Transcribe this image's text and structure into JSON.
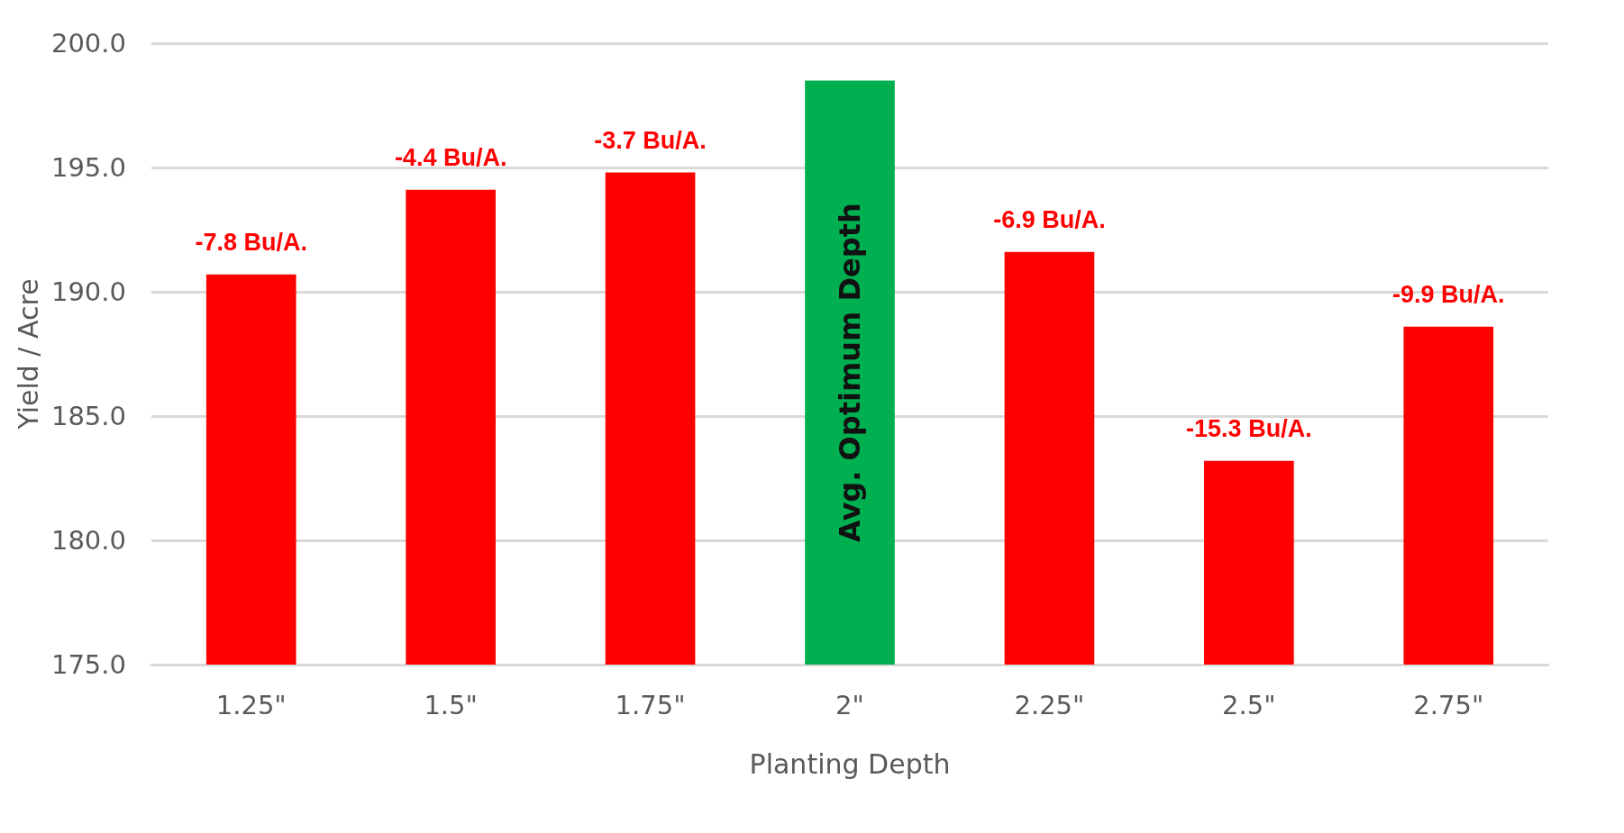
{
  "chart_data": {
    "type": "bar",
    "xlabel": "Planting Depth",
    "ylabel": "Yield / Acre",
    "categories": [
      "1.25\"",
      "1.5\"",
      "1.75\"",
      "2\"",
      "2.25\"",
      "2.5\"",
      "2.75\""
    ],
    "values": [
      190.7,
      194.1,
      194.8,
      198.5,
      191.6,
      183.2,
      188.6
    ],
    "colors": [
      "#ff0000",
      "#ff0000",
      "#ff0000",
      "#00b050",
      "#ff0000",
      "#ff0000",
      "#ff0000"
    ],
    "annotations": [
      {
        "text": "-7.8 Bu/A.",
        "x": "1.25\"",
        "y": 190.7
      },
      {
        "text": "-4.4 Bu/A.",
        "x": "1.5\"",
        "y": 194.1
      },
      {
        "text": "-3.7 Bu/A.",
        "x": "1.75\"",
        "y": 194.8
      },
      "Avg. Optimum Depth",
      {
        "text": "-6.9 Bu/A.",
        "x": "2.25\"",
        "y": 191.6
      },
      {
        "text": "-15.3 Bu/A.",
        "x": "2.5\"",
        "y": 183.2
      },
      {
        "text": "-9.9 Bu/A.",
        "x": "2.75\"",
        "y": 188.6
      }
    ],
    "ylim": [
      175,
      200
    ],
    "yticks": [
      {
        "value": 175,
        "label": "175.0"
      },
      {
        "value": 180,
        "label": "180.0"
      },
      {
        "value": 185,
        "label": "185.0"
      },
      {
        "value": 190,
        "label": "190.0"
      },
      {
        "value": 195,
        "label": "195.0"
      },
      {
        "value": 200,
        "label": "200.0"
      }
    ],
    "grid": "y"
  }
}
